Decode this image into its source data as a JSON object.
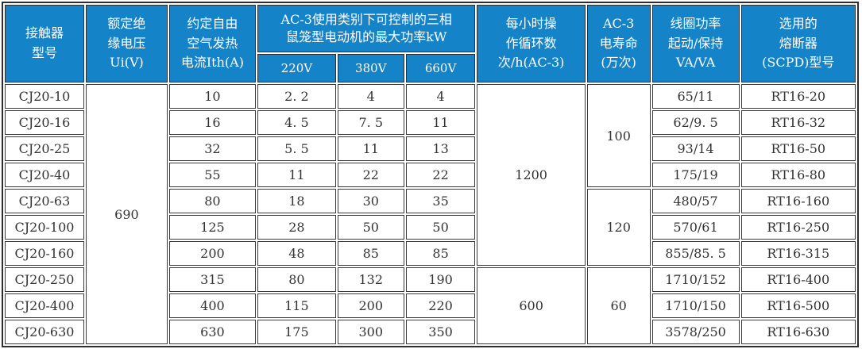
{
  "colors": {
    "header_bg": "#1583c8",
    "header_text": "#ffffff",
    "border": "#2e2e2e",
    "body_text": "#333333"
  },
  "header": {
    "model": [
      "接触器",
      "型号"
    ],
    "insulation_voltage": [
      "额定绝",
      "缘电压",
      "Ui(V)"
    ],
    "thermal_current": [
      "约定自由",
      "空气发热",
      "电流Ith(A)"
    ],
    "power_group": [
      "AC-3使用类别下可控制的三相",
      "鼠笼型电动机的最大功率kW"
    ],
    "power_sub": [
      "220V",
      "380V",
      "660V"
    ],
    "cycles": [
      "每小时操",
      "作循环数",
      "次/h(AC-3)"
    ],
    "life": [
      "AC-3",
      "电寿命",
      "(万次)"
    ],
    "coil": [
      "线圈功率",
      "起动/保持",
      "VA/VA"
    ],
    "fuse": [
      "选用的",
      "熔断器",
      "(SCPD)型号"
    ]
  },
  "merged": {
    "ui": "690",
    "cycles": [
      {
        "value": "1200",
        "rowspan": 7
      },
      {
        "value": "600",
        "rowspan": 3
      }
    ],
    "life": [
      {
        "value": "100",
        "rowspan": 4
      },
      {
        "value": "120",
        "rowspan": 3
      },
      {
        "value": "60",
        "rowspan": 3
      }
    ]
  },
  "rows": [
    {
      "model": "CJ20-10",
      "ith": "10",
      "p220": "2. 2",
      "p380": "4",
      "p660": "4",
      "coil": "65/11",
      "fuse": "RT16-20"
    },
    {
      "model": "CJ20-16",
      "ith": "16",
      "p220": "4. 5",
      "p380": "7. 5",
      "p660": "11",
      "coil": "62/9. 5",
      "fuse": "RT16-32"
    },
    {
      "model": "CJ20-25",
      "ith": "32",
      "p220": "5. 5",
      "p380": "11",
      "p660": "13",
      "coil": "93/14",
      "fuse": "RT16-50"
    },
    {
      "model": "CJ20-40",
      "ith": "55",
      "p220": "11",
      "p380": "22",
      "p660": "22",
      "coil": "175/19",
      "fuse": "RT16-80"
    },
    {
      "model": "CJ20-63",
      "ith": "80",
      "p220": "18",
      "p380": "30",
      "p660": "35",
      "coil": "480/57",
      "fuse": "RT16-160"
    },
    {
      "model": "CJ20-100",
      "ith": "125",
      "p220": "28",
      "p380": "50",
      "p660": "50",
      "coil": "570/61",
      "fuse": "RT16-250"
    },
    {
      "model": "CJ20-160",
      "ith": "200",
      "p220": "48",
      "p380": "85",
      "p660": "85",
      "coil": "855/85. 5",
      "fuse": "RT16-315"
    },
    {
      "model": "CJ20-250",
      "ith": "315",
      "p220": "80",
      "p380": "132",
      "p660": "190",
      "coil": "1710/152",
      "fuse": "RT16-400"
    },
    {
      "model": "CJ20-400",
      "ith": "400",
      "p220": "115",
      "p380": "200",
      "p660": "220",
      "coil": "1710/150",
      "fuse": "RT16-500"
    },
    {
      "model": "CJ20-630",
      "ith": "630",
      "p220": "175",
      "p380": "300",
      "p660": "350",
      "coil": "3578/250",
      "fuse": "RT16-630"
    }
  ],
  "chart_data": {
    "type": "table",
    "columns": [
      "接触器型号",
      "额定绝缘电压 Ui(V)",
      "约定自由空气发热电流Ith(A)",
      "AC-3使用类别下可控制的三相鼠笼型电动机的最大功率kW 220V",
      "AC-3使用类别下可控制的三相鼠笼型电动机的最大功率kW 380V",
      "AC-3使用类别下可控制的三相鼠笼型电动机的最大功率kW 660V",
      "每小时操作循环数 次/h(AC-3)",
      "AC-3电寿命(万次)",
      "线圈功率 起动/保持 VA/VA",
      "选用的熔断器(SCPD)型号"
    ],
    "rows": [
      [
        "CJ20-10",
        "690",
        "10",
        "2.2",
        "4",
        "4",
        "1200",
        "100",
        "65/11",
        "RT16-20"
      ],
      [
        "CJ20-16",
        "690",
        "16",
        "4.5",
        "7.5",
        "11",
        "1200",
        "100",
        "62/9.5",
        "RT16-32"
      ],
      [
        "CJ20-25",
        "690",
        "32",
        "5.5",
        "11",
        "13",
        "1200",
        "100",
        "93/14",
        "RT16-50"
      ],
      [
        "CJ20-40",
        "690",
        "55",
        "11",
        "22",
        "22",
        "1200",
        "100",
        "175/19",
        "RT16-80"
      ],
      [
        "CJ20-63",
        "690",
        "80",
        "18",
        "30",
        "35",
        "1200",
        "120",
        "480/57",
        "RT16-160"
      ],
      [
        "CJ20-100",
        "690",
        "125",
        "28",
        "50",
        "50",
        "1200",
        "120",
        "570/61",
        "RT16-250"
      ],
      [
        "CJ20-160",
        "690",
        "200",
        "48",
        "85",
        "85",
        "1200",
        "120",
        "855/85.5",
        "RT16-315"
      ],
      [
        "CJ20-250",
        "690",
        "315",
        "80",
        "132",
        "190",
        "600",
        "60",
        "1710/152",
        "RT16-400"
      ],
      [
        "CJ20-400",
        "690",
        "400",
        "115",
        "200",
        "220",
        "600",
        "60",
        "1710/150",
        "RT16-500"
      ],
      [
        "CJ20-630",
        "690",
        "630",
        "175",
        "300",
        "350",
        "600",
        "60",
        "3578/250",
        "RT16-630"
      ]
    ]
  }
}
